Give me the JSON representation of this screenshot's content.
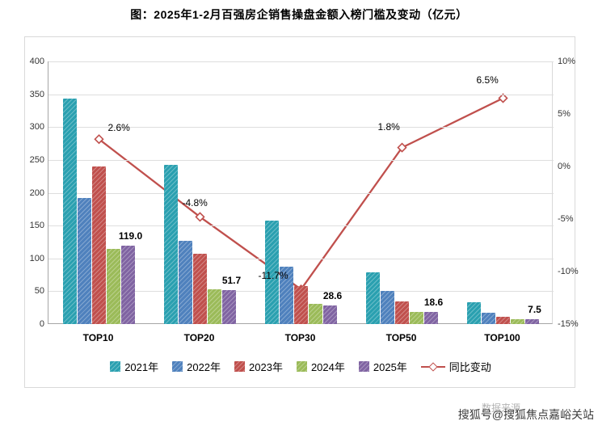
{
  "title": "图：2025年1-2月百强房企销售操盘金额入榜门槛及变动（亿元）",
  "footer": {
    "source": "数据来源",
    "sohu": "搜狐号@搜狐焦点嘉峪关站"
  },
  "chart_data": {
    "type": "bar",
    "subtype": "grouped-bar-with-line",
    "categories": [
      "TOP10",
      "TOP20",
      "TOP30",
      "TOP50",
      "TOP100"
    ],
    "series": [
      {
        "name": "2021年",
        "color": "#2AA0B0",
        "values": [
          343,
          242,
          158,
          79,
          33
        ]
      },
      {
        "name": "2022年",
        "color": "#4F81BD",
        "values": [
          192,
          127,
          87,
          51,
          17
        ]
      },
      {
        "name": "2023年",
        "color": "#C0504D",
        "values": [
          240,
          107,
          58,
          35,
          11
        ]
      },
      {
        "name": "2024年",
        "color": "#9BBB59",
        "values": [
          114,
          53,
          31,
          19,
          7
        ]
      },
      {
        "name": "2025年",
        "color": "#8064A2",
        "values": [
          119.0,
          51.7,
          28.6,
          18.6,
          7.5
        ],
        "labels": [
          "119.0",
          "51.7",
          "28.6",
          "18.6",
          "7.5"
        ]
      }
    ],
    "line_series": {
      "name": "同比变动",
      "color": "#C0504D",
      "axis": "right",
      "values": [
        2.6,
        -4.8,
        -11.7,
        1.8,
        6.5
      ],
      "labels": [
        "2.6%",
        "-4.8%",
        "-11.7%",
        "1.8%",
        "6.5%"
      ]
    },
    "ylabel": "",
    "xlabel": "",
    "ylim": [
      0,
      400
    ],
    "ystep": 50,
    "y2lim": [
      -15,
      10
    ],
    "y2step": 5,
    "y2format": "percent",
    "grid": true,
    "legend_position": "bottom"
  }
}
